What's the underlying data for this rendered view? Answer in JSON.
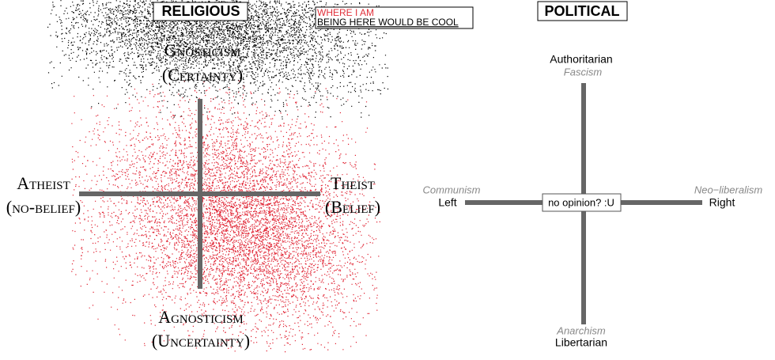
{
  "religious": {
    "title": "RELIGIOUS",
    "top": "Gnosticism",
    "top_sub": "(Certainty)",
    "left": "Atheist",
    "left_sub": "(no-belief)",
    "right": "Theist",
    "right_sub": "(Belief)",
    "bottom": "Agnosticism",
    "bottom_sub": "(Uncertainty)"
  },
  "legend": {
    "red": "WHERE I AM",
    "black": "BEING HERE WOULD BE COOL"
  },
  "political": {
    "title": "POLITICAL",
    "top": "Authoritarian",
    "top_sub": "Fascism",
    "left": "Left",
    "left_sub": "Communism",
    "right": "Right",
    "right_sub": "Neo−liberalism",
    "bottom": "Libertarian",
    "bottom_sub": "Anarchism",
    "center": "no opinion? :U"
  }
}
